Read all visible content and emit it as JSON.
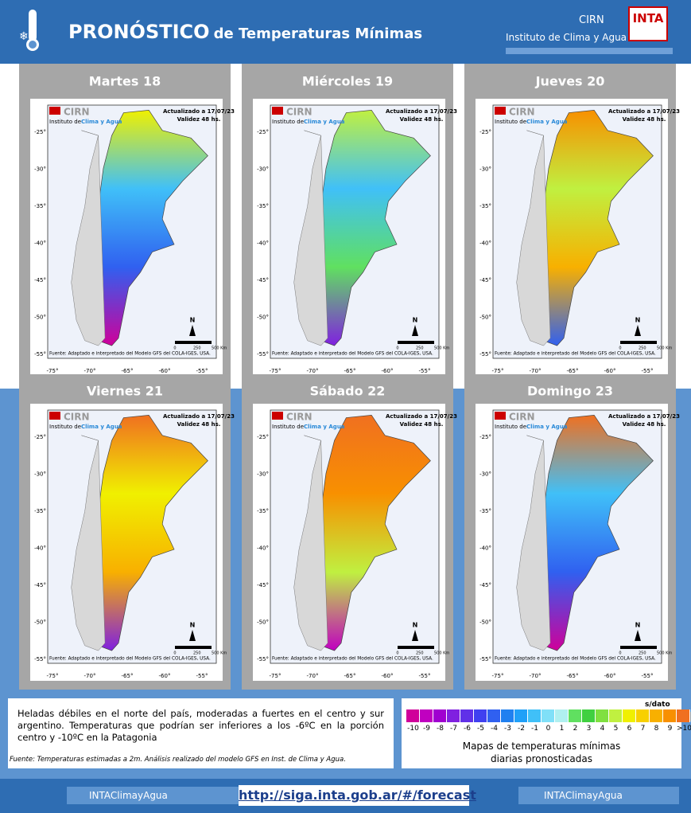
{
  "header": {
    "title": "PRONÓSTICO",
    "title_rest": "de Temperaturas  Mínimas",
    "org": "CIRN",
    "org_sub": "Instituto de Clima y Agua",
    "logo": "INTA"
  },
  "panels": [
    "Martes 18",
    "Miércoles 19",
    "Jueves 20",
    "Viernes 21",
    "Sábado 22",
    "Domingo 23"
  ],
  "map": {
    "brand": "CIRN",
    "brand_sub": "Instituto de",
    "brand_sub2": "Clima y Agua",
    "updated": "Actualizado a 17/07/23",
    "validity": "Validez 48 hs.",
    "source": "Fuente: Adaptado e interpretado del Modelo GFS del COLA-IGES, USA.",
    "north": "N",
    "scale": [
      "0",
      "250",
      "500 Km"
    ],
    "lat_ticks": [
      "-25°",
      "-30°",
      "-35°",
      "-40°",
      "-45°",
      "-50°",
      "-55°"
    ],
    "lon_ticks": [
      "-75°",
      "-70°",
      "-65°",
      "-60°",
      "-55°"
    ]
  },
  "description": "Heladas débiles en el norte del país, moderadas a fuertes en el centro y sur argentino. Temperaturas que podrían ser inferiores a los -6ºC en la porción centro y -10ºC en la Patagonia",
  "note": "Fuente: Temperaturas estimadas a 2m. Análisis realizado del modelo GFS en Inst. de Clima y Agua.",
  "legend": {
    "nodata": "s/dato",
    "labels": [
      "-10",
      "-9",
      "-8",
      "-7",
      "-6",
      "-5",
      "-4",
      "-3",
      "-2",
      "-1",
      "0",
      "1",
      "2",
      "3",
      "4",
      "5",
      "6",
      "7",
      "8",
      "9",
      ">10"
    ],
    "unit": "°C",
    "colors": [
      "#d0009a",
      "#c000c0",
      "#a000d0",
      "#8020e0",
      "#6030e8",
      "#4040f0",
      "#3060f0",
      "#2080f0",
      "#20a0f8",
      "#40c0f8",
      "#80e0f8",
      "#b0f0f0",
      "#60e060",
      "#40d040",
      "#80e040",
      "#c0f040",
      "#f0f000",
      "#f8d000",
      "#f8b000",
      "#f89000",
      "#f07020"
    ],
    "caption": "Mapas de temperaturas mínimas",
    "caption2": "diarias pronosticadas"
  },
  "footer": {
    "twitter": "INTAClimayAgua",
    "url": "http://siga.inta.gob.ar/#/forecast",
    "facebook": "INTAClimayAgua"
  }
}
